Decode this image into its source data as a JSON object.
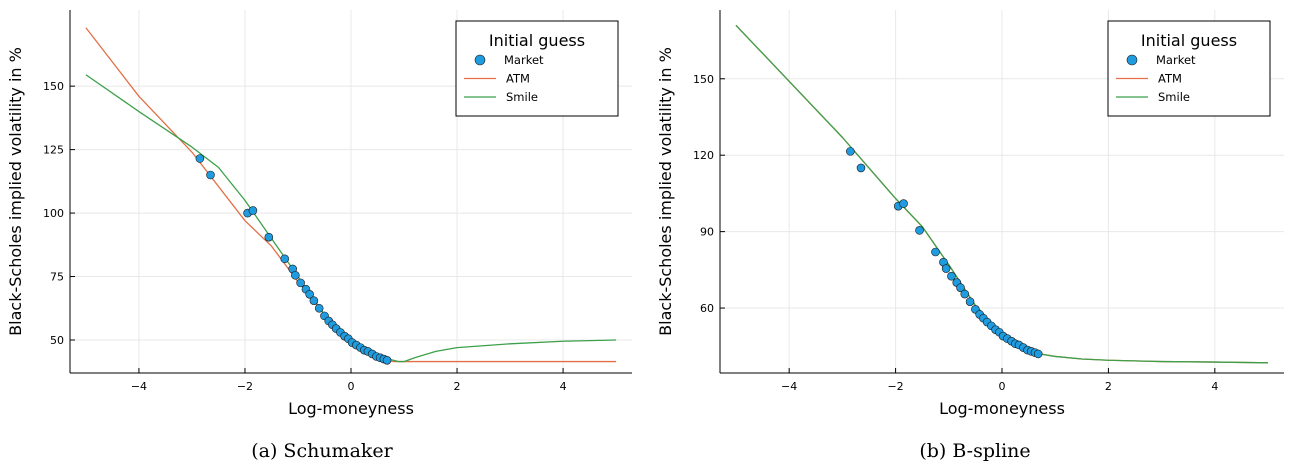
{
  "chart_data": [
    {
      "type": "line",
      "caption": "(a)  Schumaker",
      "xlabel": "Log-moneyness",
      "ylabel": "Black-Scholes implied volatility in %",
      "xlim": [
        -5.3,
        5.3
      ],
      "ylim": [
        37,
        180
      ],
      "xticks": [
        -4,
        -2,
        0,
        2,
        4
      ],
      "yticks": [
        50,
        75,
        100,
        125,
        150
      ],
      "grid": true,
      "legend": {
        "title": "Initial guess",
        "position": "top-right"
      },
      "series": [
        {
          "name": "Market",
          "kind": "scatter",
          "color": "#1f9bdf",
          "x": [
            -2.85,
            -2.65,
            -1.95,
            -1.85,
            -1.55,
            -1.25,
            -1.1,
            -1.05,
            -0.95,
            -0.85,
            -0.78,
            -0.7,
            -0.6,
            -0.5,
            -0.42,
            -0.35,
            -0.28,
            -0.2,
            -0.12,
            -0.05,
            0.02,
            0.1,
            0.18,
            0.25,
            0.32,
            0.4,
            0.48,
            0.55,
            0.62,
            0.68
          ],
          "y": [
            121.5,
            115,
            100,
            101,
            90.5,
            82,
            78,
            75.5,
            72.5,
            70,
            68,
            65.5,
            62.5,
            59.5,
            57.5,
            56,
            54.5,
            53,
            51.5,
            50.5,
            49,
            48,
            47,
            46,
            45.5,
            44.5,
            43.5,
            43,
            42.5,
            42
          ]
        },
        {
          "name": "ATM",
          "kind": "line",
          "color": "#e26f46",
          "x": [
            -5,
            -4,
            -3,
            -2,
            -1.5,
            -1,
            -0.5,
            0,
            0.3,
            0.5,
            0.7,
            0.8,
            1,
            2,
            3,
            4,
            5
          ],
          "y": [
            173,
            146,
            124,
            97,
            87,
            73,
            60,
            50.5,
            46.5,
            44,
            42,
            41.5,
            41.5,
            41.5,
            41.5,
            41.5,
            41.5
          ]
        },
        {
          "name": "Smile",
          "kind": "line",
          "color": "#3ca04a",
          "x": [
            -5,
            -4,
            -3,
            -2.5,
            -2,
            -1.5,
            -1,
            -0.5,
            0,
            0.4,
            0.8,
            0.9,
            1,
            1.2,
            1.6,
            2,
            3,
            4,
            5
          ],
          "y": [
            154.5,
            140,
            126,
            118,
            105,
            90,
            75,
            60,
            50,
            45,
            42,
            41.5,
            41.5,
            43,
            45.5,
            47,
            48.5,
            49.5,
            50
          ]
        }
      ]
    },
    {
      "type": "line",
      "caption": "(b)  B-spline",
      "xlabel": "Log-moneyness",
      "ylabel": "Black-Scholes implied volatility in %",
      "xlim": [
        -5.3,
        5.3
      ],
      "ylim": [
        34.5,
        177
      ],
      "xticks": [
        -4,
        -2,
        0,
        2,
        4
      ],
      "yticks": [
        60,
        90,
        120,
        150
      ],
      "grid": true,
      "legend": {
        "title": "Initial guess",
        "position": "top-right"
      },
      "series": [
        {
          "name": "Market",
          "kind": "scatter",
          "color": "#1f9bdf",
          "x": [
            -2.85,
            -2.65,
            -1.95,
            -1.85,
            -1.55,
            -1.25,
            -1.1,
            -1.05,
            -0.95,
            -0.85,
            -0.78,
            -0.7,
            -0.6,
            -0.5,
            -0.42,
            -0.35,
            -0.28,
            -0.2,
            -0.12,
            -0.05,
            0.02,
            0.1,
            0.18,
            0.25,
            0.32,
            0.4,
            0.48,
            0.55,
            0.62,
            0.68
          ],
          "y": [
            121.5,
            115,
            100,
            101,
            90.5,
            82,
            78,
            75.5,
            72.5,
            70,
            68,
            65.5,
            62.5,
            59.5,
            57.5,
            56,
            54.5,
            53,
            51.5,
            50.5,
            49,
            48,
            47,
            46,
            45.5,
            44.5,
            43.5,
            43,
            42.5,
            42
          ]
        },
        {
          "name": "ATM",
          "kind": "line",
          "color": "#e26f46",
          "x": [
            -5,
            -4,
            -3,
            -2,
            -1.5,
            -1,
            -0.5,
            0,
            0.3,
            0.7,
            1,
            1.5,
            2,
            3,
            4,
            5
          ],
          "y": [
            171,
            149,
            127,
            103,
            92,
            77,
            61,
            50,
            45.5,
            42,
            41,
            40,
            39.5,
            39,
            38.8,
            38.5
          ]
        },
        {
          "name": "Smile",
          "kind": "line",
          "color": "#3ca04a",
          "x": [
            -5,
            -4,
            -3,
            -2,
            -1.5,
            -1,
            -0.5,
            0,
            0.3,
            0.7,
            1,
            1.5,
            2,
            3,
            4,
            5
          ],
          "y": [
            171,
            149,
            127,
            103,
            92,
            77,
            61,
            50,
            45.5,
            42,
            41,
            40,
            39.5,
            39,
            38.8,
            38.5
          ]
        }
      ]
    }
  ]
}
